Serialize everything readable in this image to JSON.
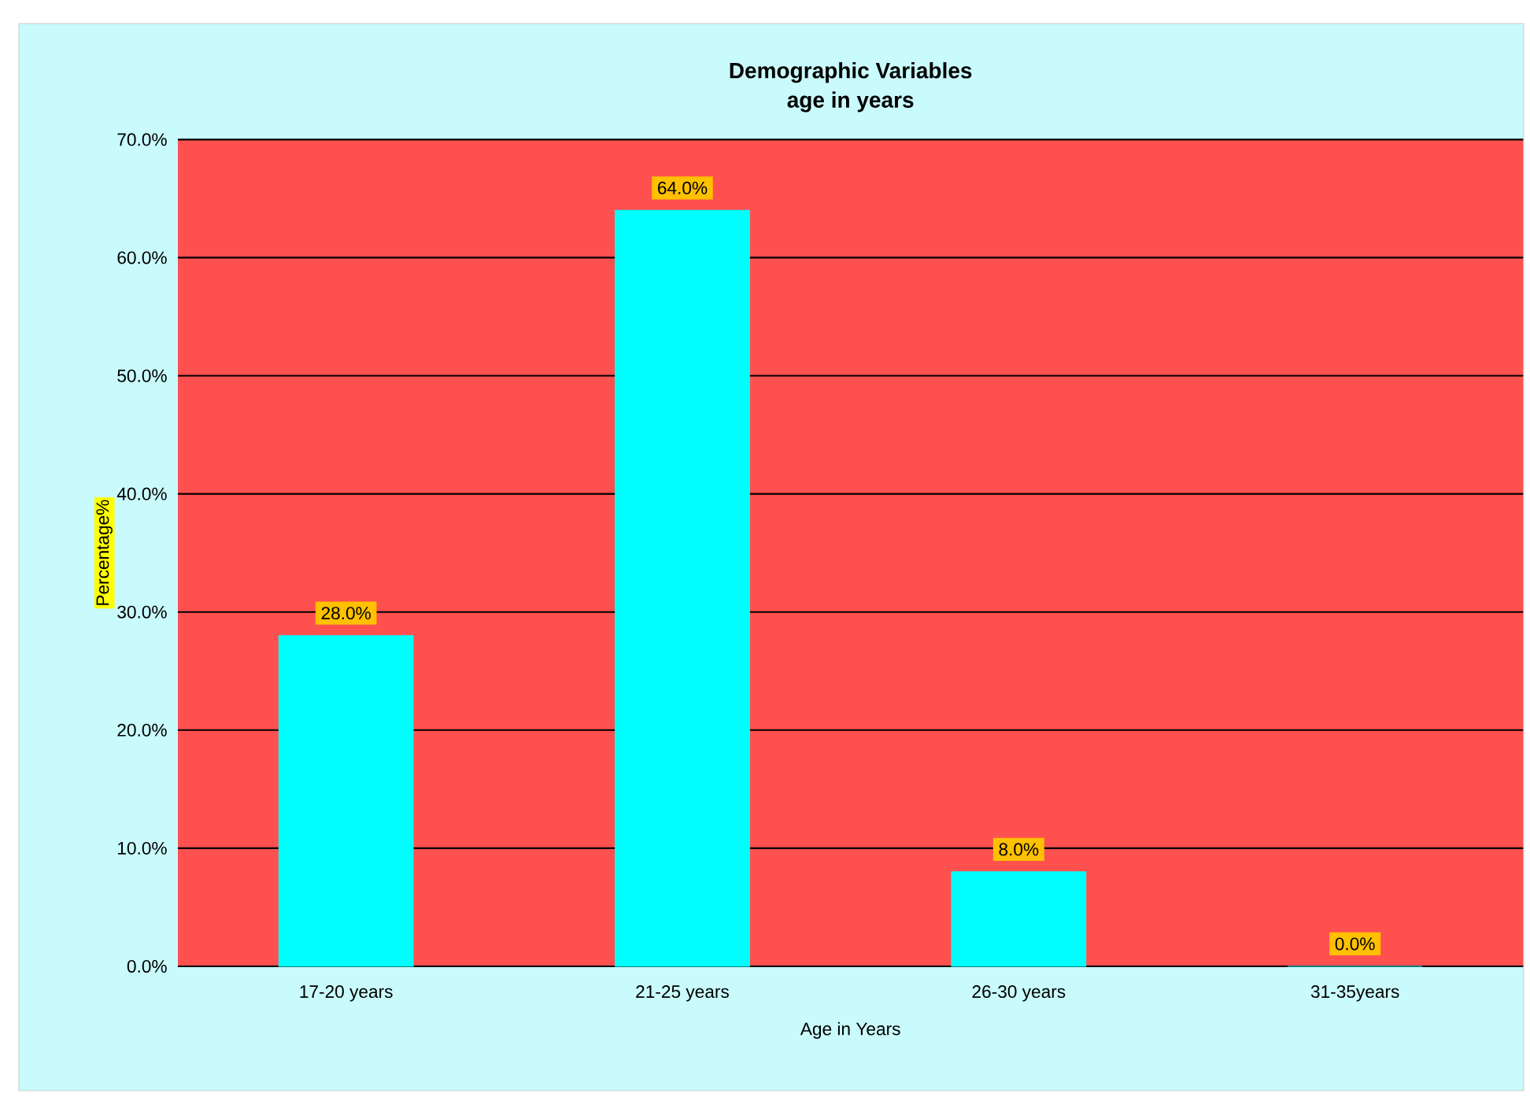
{
  "chart_data": {
    "type": "bar",
    "title": "Demographic Variables",
    "subtitle": "age in years",
    "xlabel": "Age in Years",
    "ylabel": "Percentage%",
    "categories": [
      "17-20 years",
      "21-25 years",
      "26-30 years",
      "31-35years"
    ],
    "values": [
      28.0,
      64.0,
      8.0,
      0.0
    ],
    "value_labels": [
      "28.0%",
      "64.0%",
      "8.0%",
      "0.0%"
    ],
    "color": "#00ffff",
    "ylim": [
      0,
      70
    ],
    "yticks": [
      {
        "value": 0,
        "label": "0.0%"
      },
      {
        "value": 10,
        "label": "10.0%"
      },
      {
        "value": 20,
        "label": "20.0%"
      },
      {
        "value": 30,
        "label": "30.0%"
      },
      {
        "value": 40,
        "label": "40.0%"
      },
      {
        "value": 50,
        "label": "50.0%"
      },
      {
        "value": 60,
        "label": "60.0%"
      },
      {
        "value": 70,
        "label": "70.0%"
      }
    ],
    "grid": "y"
  }
}
